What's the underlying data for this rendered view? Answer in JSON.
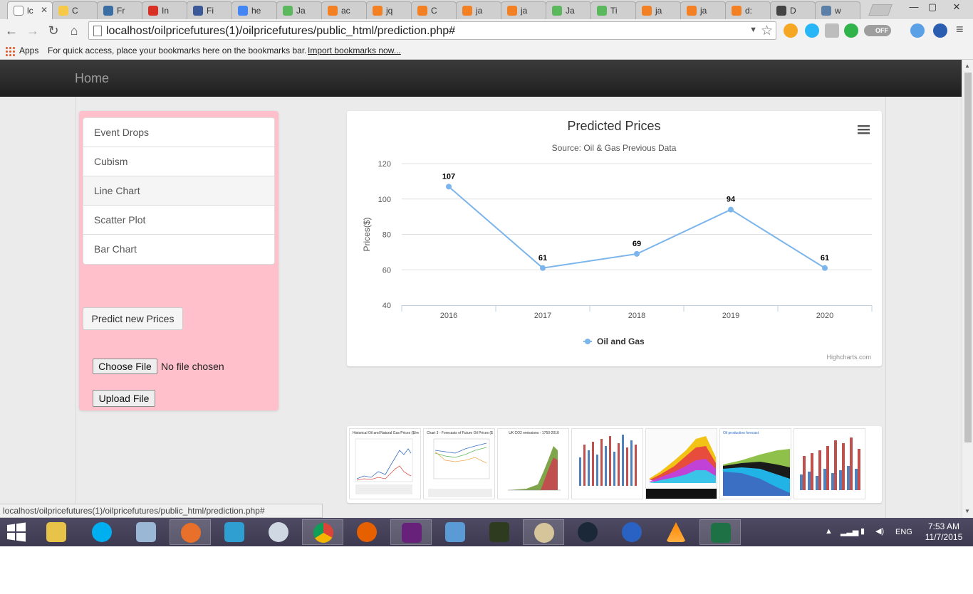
{
  "browser": {
    "tabs": [
      {
        "label": "lc",
        "color": "#ffffff",
        "active": true
      },
      {
        "label": "C",
        "color": "#f7c948"
      },
      {
        "label": "Fr",
        "color": "#3b6ea5"
      },
      {
        "label": "In",
        "color": "#d93025"
      },
      {
        "label": "Fi",
        "color": "#3b5998"
      },
      {
        "label": "he",
        "color": "#4285f4"
      },
      {
        "label": "Ja",
        "color": "#5cb85c"
      },
      {
        "label": "ac",
        "color": "#f48024"
      },
      {
        "label": "jq",
        "color": "#f48024"
      },
      {
        "label": "C",
        "color": "#f48024"
      },
      {
        "label": "ja",
        "color": "#f48024"
      },
      {
        "label": "ja",
        "color": "#f48024"
      },
      {
        "label": "Ja",
        "color": "#5cb85c"
      },
      {
        "label": "Ti",
        "color": "#5cb85c"
      },
      {
        "label": "ja",
        "color": "#f48024"
      },
      {
        "label": "ja",
        "color": "#f48024"
      },
      {
        "label": "d:",
        "color": "#f48024"
      },
      {
        "label": "D",
        "color": "#444444"
      },
      {
        "label": "w",
        "color": "#5b7fa6"
      }
    ],
    "active_tab_close": "✕",
    "window_controls": {
      "minimize": "—",
      "maximize": "▢",
      "close": "✕"
    },
    "nav": {
      "back": "←",
      "forward": "→",
      "reload": "↻",
      "home": "⌂"
    },
    "url": "localhost/oilpricefutures(1)/oilpricefutures/public_html/prediction.php#",
    "url_dropdown": "▼",
    "star": "☆",
    "off_toggle": "OFF",
    "menu": "≡",
    "bookmarks": {
      "apps": "Apps",
      "hint": "For quick access, place your bookmarks here on the bookmarks bar.",
      "import": "Import bookmarks now..."
    },
    "status_url": "localhost/oilpricefutures(1)/oilpricefutures/public_html/prediction.php#"
  },
  "navbar": {
    "brand": "Home"
  },
  "sidebar": {
    "items": [
      {
        "label": "Event Drops"
      },
      {
        "label": "Cubism"
      },
      {
        "label": "Line Chart",
        "active": true
      },
      {
        "label": "Scatter Plot"
      },
      {
        "label": "Bar Chart"
      }
    ],
    "predict_button": "Predict new Prices",
    "choose_file_button": "Choose File",
    "no_file": "No file chosen",
    "upload_button": "Upload File"
  },
  "chart_data": {
    "type": "line",
    "title": "Predicted Prices",
    "subtitle": "Source: Oil & Gas Previous Data",
    "xlabel": "",
    "ylabel": "Prices($)",
    "categories": [
      "2016",
      "2017",
      "2018",
      "2019",
      "2020"
    ],
    "series": [
      {
        "name": "Oil and Gas",
        "values": [
          107,
          61,
          69,
          94,
          61
        ],
        "color": "#7cb5ec"
      }
    ],
    "ylim": [
      40,
      120
    ],
    "yticks": [
      40,
      60,
      80,
      100,
      120
    ],
    "grid": true,
    "legend": "bottom-center",
    "data_labels": true,
    "credits": "Highcharts.com",
    "menu_icon": "hamburger-icon"
  },
  "thumbnails": [
    {
      "caption": "Historical Oil and Natural Gas Prices ($/mmBtu)"
    },
    {
      "caption": "Chart 3 - Forecasts of Future Oil Prices ($ Per Barrel)"
    },
    {
      "caption": "UK CO2 emissions - 1750-2010"
    },
    {
      "caption": ""
    },
    {
      "caption": ""
    },
    {
      "caption": "Oil production forecast"
    },
    {
      "caption": ""
    }
  ],
  "taskbar": {
    "language": "ENG",
    "time": "7:53 AM",
    "date": "11/7/2015"
  }
}
